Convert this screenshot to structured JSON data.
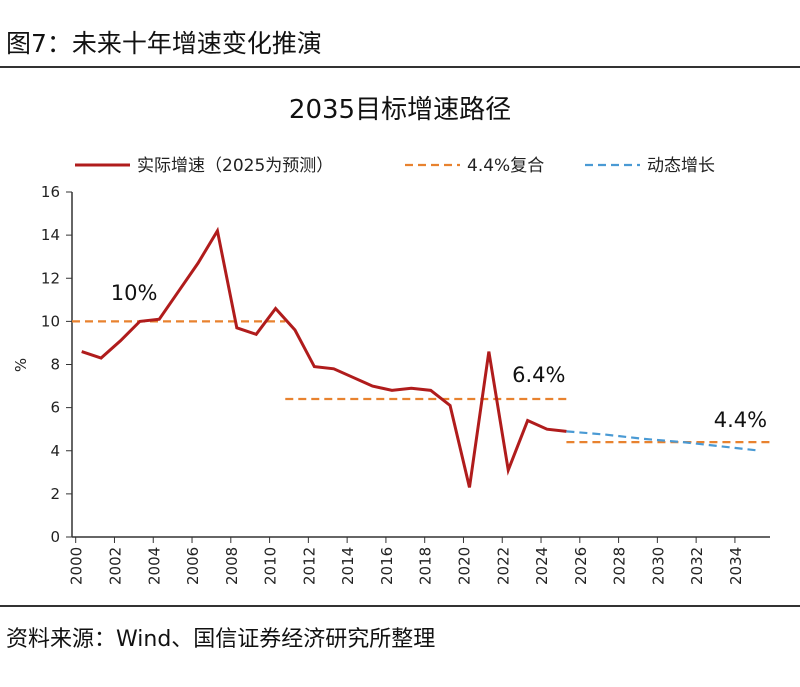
{
  "figure_title": "图7：未来十年增速变化推演",
  "source": "资料来源：Wind、国信证券经济研究所整理",
  "chart_data": {
    "type": "line",
    "title": "2035目标增速路径",
    "xlabel": "",
    "ylabel": "%",
    "ylim": [
      0,
      16
    ],
    "xlim": [
      2000,
      2035
    ],
    "yticks": [
      0,
      2,
      4,
      6,
      8,
      10,
      12,
      14,
      16
    ],
    "xticks": [
      2000,
      2002,
      2004,
      2006,
      2008,
      2010,
      2012,
      2014,
      2016,
      2018,
      2020,
      2022,
      2024,
      2026,
      2028,
      2030,
      2032,
      2034
    ],
    "grid": false,
    "legend_position": "top",
    "series": [
      {
        "name": "实际增速（2025为预测）",
        "color": "#b01c1c",
        "style": "solid",
        "x": [
          2000,
          2001,
          2002,
          2003,
          2004,
          2005,
          2006,
          2007,
          2008,
          2009,
          2010,
          2011,
          2012,
          2013,
          2014,
          2015,
          2016,
          2017,
          2018,
          2019,
          2020,
          2021,
          2022,
          2023,
          2024,
          2025
        ],
        "y": [
          8.6,
          8.3,
          9.1,
          10.0,
          10.1,
          11.4,
          12.7,
          14.2,
          9.7,
          9.4,
          10.6,
          9.6,
          7.9,
          7.8,
          7.4,
          7.0,
          6.8,
          6.9,
          6.8,
          6.1,
          2.3,
          8.6,
          3.1,
          5.4,
          5.0,
          4.9
        ]
      },
      {
        "name": "4.4%复合",
        "color": "#e8822f",
        "style": "dashed",
        "x": [
          2025,
          2035.5
        ],
        "y": [
          4.4,
          4.4
        ]
      },
      {
        "name": "动态增长",
        "color": "#4a9ad4",
        "style": "dashed",
        "x": [
          2025,
          2027,
          2029,
          2031,
          2033,
          2035
        ],
        "y": [
          4.9,
          4.75,
          4.55,
          4.4,
          4.2,
          4.0
        ]
      }
    ],
    "reference_lines": [
      {
        "label": "10%",
        "value": 10,
        "x": [
          1999.5,
          2010.5
        ],
        "color": "#e8822f"
      },
      {
        "label": "6.4%",
        "value": 6.4,
        "x": [
          2010.5,
          2025
        ],
        "color": "#e8822f"
      }
    ],
    "annotations": [
      {
        "text": "10%",
        "x": 2001.5,
        "y": 11
      },
      {
        "text": "6.4%",
        "x": 2022.2,
        "y": 7.2
      },
      {
        "text": "4.4%",
        "x": 2032.6,
        "y": 5.1
      }
    ]
  }
}
